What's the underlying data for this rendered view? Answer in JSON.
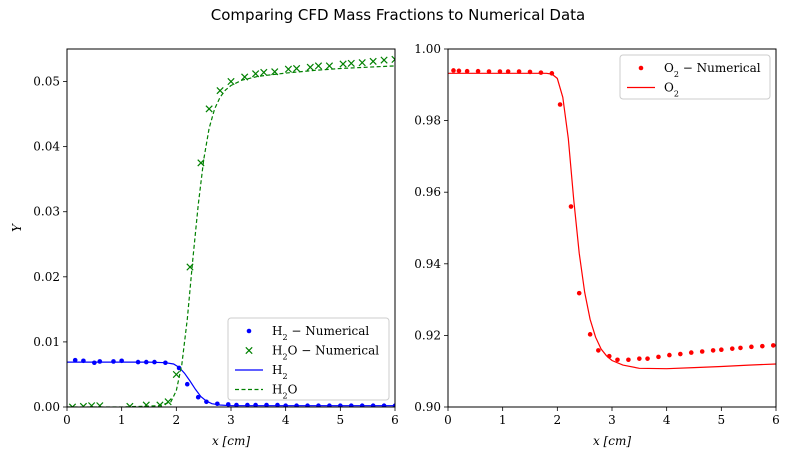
{
  "title": "Comparing CFD Mass Fractions to Numerical Data",
  "colors": {
    "blue": "#0000ff",
    "green": "#008000",
    "red": "#ff0000"
  },
  "chart_data": [
    {
      "type": "line",
      "xlabel": "x [cm]",
      "ylabel": "Y",
      "xlim": [
        0,
        6
      ],
      "ylim": [
        0,
        0.055
      ],
      "xticks": [
        "0",
        "1",
        "2",
        "3",
        "4",
        "5",
        "6"
      ],
      "yticks": [
        "0.00",
        "0.01",
        "0.02",
        "0.03",
        "0.04",
        "0.05"
      ],
      "grid": false,
      "legend_position": "lower-right",
      "series": [
        {
          "name": "H2 − Numerical",
          "style": "dots",
          "color": "#0000ff",
          "x": [
            0.15,
            0.3,
            0.5,
            0.6,
            0.85,
            1.0,
            1.3,
            1.45,
            1.6,
            1.8,
            2.05,
            2.2,
            2.4,
            2.55,
            2.75,
            2.95,
            3.1,
            3.3,
            3.45,
            3.65,
            3.85,
            4.0,
            4.2,
            4.4,
            4.6,
            4.8,
            5.0,
            5.2,
            5.4,
            5.6,
            5.8,
            6.0
          ],
          "y": [
            0.0072,
            0.0071,
            0.0068,
            0.007,
            0.007,
            0.0071,
            0.0069,
            0.0069,
            0.0069,
            0.0068,
            0.006,
            0.0035,
            0.0015,
            0.0008,
            0.0005,
            0.0004,
            0.0003,
            0.0003,
            0.0003,
            0.0003,
            0.0003,
            0.0002,
            0.0002,
            0.0002,
            0.0002,
            0.0002,
            0.0002,
            0.0002,
            0.0002,
            0.0002,
            0.0002,
            0.0002
          ]
        },
        {
          "name": "H2O − Numerical",
          "style": "x-markers",
          "color": "#008000",
          "x": [
            0.1,
            0.3,
            0.45,
            0.6,
            1.15,
            1.45,
            1.7,
            1.85,
            2.0,
            2.25,
            2.45,
            2.6,
            2.8,
            3.0,
            3.25,
            3.45,
            3.6,
            3.8,
            4.05,
            4.2,
            4.45,
            4.6,
            4.8,
            5.05,
            5.2,
            5.4,
            5.6,
            5.8,
            6.0
          ],
          "y": [
            0.0,
            0.0001,
            0.0002,
            0.0002,
            0.0001,
            0.0003,
            0.0003,
            0.0008,
            0.005,
            0.0215,
            0.0375,
            0.0458,
            0.0486,
            0.05,
            0.0507,
            0.0512,
            0.0514,
            0.0515,
            0.0519,
            0.052,
            0.0522,
            0.0524,
            0.0524,
            0.0527,
            0.0528,
            0.0529,
            0.0531,
            0.0533,
            0.0534
          ]
        },
        {
          "name": "H2",
          "style": "solid",
          "color": "#0000ff",
          "x": [
            0,
            1.0,
            1.5,
            1.8,
            1.95,
            2.05,
            2.15,
            2.25,
            2.35,
            2.45,
            2.55,
            2.65,
            2.8,
            3.0,
            3.5,
            4.0,
            5.0,
            6.0
          ],
          "y": [
            0.0069,
            0.0069,
            0.0069,
            0.0068,
            0.0066,
            0.0061,
            0.0052,
            0.004,
            0.0027,
            0.0016,
            0.0009,
            0.0005,
            0.0003,
            0.0002,
            0.0002,
            0.0002,
            0.0002,
            0.0002
          ]
        },
        {
          "name": "H2O",
          "style": "dashed",
          "color": "#008000",
          "x": [
            0,
            1.0,
            1.7,
            1.9,
            2.0,
            2.1,
            2.2,
            2.3,
            2.4,
            2.5,
            2.6,
            2.7,
            2.8,
            2.9,
            3.0,
            3.2,
            3.5,
            4.0,
            4.5,
            5.0,
            5.5,
            6.0
          ],
          "y": [
            0.0,
            0.0,
            0.0002,
            0.0008,
            0.0025,
            0.0065,
            0.0135,
            0.0225,
            0.031,
            0.038,
            0.0428,
            0.0458,
            0.0476,
            0.0487,
            0.0494,
            0.0502,
            0.0508,
            0.0513,
            0.0517,
            0.052,
            0.0522,
            0.0524
          ]
        }
      ],
      "legend": [
        {
          "series": 0,
          "label": "H",
          "sub": "2",
          "suffix": " − Numerical"
        },
        {
          "series": 1,
          "label": "H",
          "sub": "2",
          "suffix": "O − Numerical"
        },
        {
          "series": 2,
          "label": "H",
          "sub": "2",
          "suffix": ""
        },
        {
          "series": 3,
          "label": "H",
          "sub": "2",
          "suffix": "O"
        }
      ]
    },
    {
      "type": "line",
      "xlabel": "x [cm]",
      "ylabel": "",
      "xlim": [
        0,
        6
      ],
      "ylim": [
        0.9,
        1.0
      ],
      "xticks": [
        "0",
        "1",
        "2",
        "3",
        "4",
        "5",
        "6"
      ],
      "yticks": [
        "0.90",
        "0.92",
        "0.94",
        "0.96",
        "0.98",
        "1.00"
      ],
      "grid": false,
      "legend_position": "top-right",
      "series": [
        {
          "name": "O2 − Numerical",
          "style": "dots",
          "color": "#ff0000",
          "x": [
            0.1,
            0.2,
            0.35,
            0.55,
            0.75,
            0.95,
            1.1,
            1.3,
            1.5,
            1.7,
            1.9,
            2.05,
            2.25,
            2.4,
            2.6,
            2.75,
            2.95,
            3.1,
            3.3,
            3.5,
            3.65,
            3.85,
            4.05,
            4.25,
            4.45,
            4.65,
            4.85,
            5.0,
            5.2,
            5.35,
            5.55,
            5.75,
            5.95
          ],
          "y": [
            0.994,
            0.9939,
            0.9938,
            0.9938,
            0.9937,
            0.9937,
            0.9937,
            0.9937,
            0.9936,
            0.9934,
            0.9932,
            0.9845,
            0.956,
            0.9318,
            0.9203,
            0.9158,
            0.9142,
            0.9132,
            0.9132,
            0.9135,
            0.9135,
            0.914,
            0.9145,
            0.9148,
            0.9152,
            0.9155,
            0.9158,
            0.916,
            0.9163,
            0.9165,
            0.9168,
            0.917,
            0.9172
          ]
        },
        {
          "name": "O2",
          "style": "solid",
          "color": "#ff0000",
          "x": [
            0,
            1.0,
            1.8,
            1.9,
            2.0,
            2.1,
            2.2,
            2.3,
            2.4,
            2.5,
            2.6,
            2.7,
            2.8,
            2.9,
            3.0,
            3.2,
            3.5,
            4.0,
            4.5,
            5.0,
            5.5,
            6.0
          ],
          "y": [
            0.9932,
            0.9932,
            0.9932,
            0.993,
            0.9918,
            0.9865,
            0.975,
            0.958,
            0.943,
            0.932,
            0.9245,
            0.9195,
            0.9162,
            0.9143,
            0.913,
            0.9117,
            0.9108,
            0.9107,
            0.911,
            0.9113,
            0.9117,
            0.912
          ]
        }
      ],
      "legend": [
        {
          "series": 0,
          "label": "O",
          "sub": "2",
          "suffix": " − Numerical"
        },
        {
          "series": 1,
          "label": "O",
          "sub": "2",
          "suffix": ""
        }
      ]
    }
  ]
}
